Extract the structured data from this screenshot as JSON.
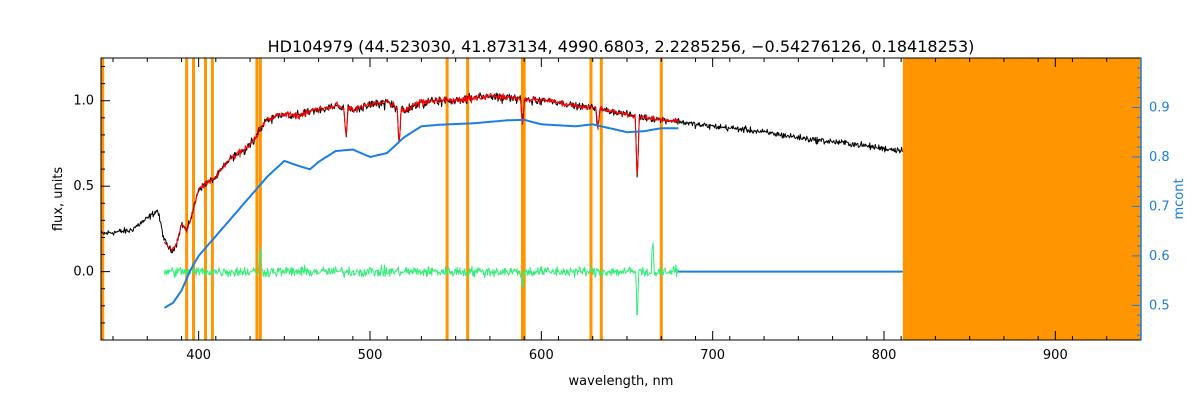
{
  "chart_data": {
    "type": "line",
    "title": "HD104979   (44.523030, 41.873134, 4990.6803, 2.2285256, −0.54276126, 0.18418253)",
    "xlabel": "wavelength, nm",
    "ylabel": "flux, units",
    "y2label": "mcont",
    "xlim": [
      343,
      950
    ],
    "ylim": [
      -0.4,
      1.25
    ],
    "y2lim": [
      0.43,
      1.0
    ],
    "x_ticks": [
      400,
      500,
      600,
      700,
      800,
      900
    ],
    "y_ticks": [
      0.0,
      0.5,
      1.0
    ],
    "y_tick_labels": [
      "0.0",
      "0.5",
      "1.0"
    ],
    "y2_ticks": [
      0.5,
      0.6,
      0.7,
      0.8,
      0.9
    ],
    "y2_tick_labels": [
      "0.5",
      "0.6",
      "0.7",
      "0.8",
      "0.9"
    ],
    "masked_lines_nm": [
      344,
      393,
      397,
      404,
      408,
      434,
      436,
      545,
      557,
      589,
      590,
      629,
      635,
      670
    ],
    "masked_region_nm": [
      811,
      950
    ],
    "series": [
      {
        "key": "observed",
        "color": "#000000",
        "axis": "left",
        "noise": 0.028,
        "x": [
          343,
          350,
          360,
          370,
          376,
          380,
          384,
          387,
          390,
          393,
          396,
          400,
          405,
          410,
          415,
          420,
          425,
          430,
          435,
          440,
          445,
          450,
          460,
          470,
          480,
          490,
          500,
          510,
          520,
          530,
          540,
          550,
          560,
          570,
          580,
          590,
          600,
          610,
          620,
          630,
          640,
          650,
          660,
          670,
          680,
          690,
          700,
          720,
          740,
          760,
          780,
          800,
          811
        ],
        "y": [
          0.22,
          0.23,
          0.24,
          0.31,
          0.36,
          0.18,
          0.12,
          0.16,
          0.28,
          0.24,
          0.33,
          0.48,
          0.52,
          0.55,
          0.62,
          0.68,
          0.72,
          0.75,
          0.83,
          0.9,
          0.92,
          0.93,
          0.93,
          0.96,
          0.98,
          0.96,
          0.99,
          1.0,
          0.95,
          1.0,
          1.01,
          1.01,
          1.03,
          1.04,
          1.03,
          1.02,
          1.01,
          0.99,
          0.97,
          0.96,
          0.94,
          0.92,
          0.9,
          0.89,
          0.88,
          0.86,
          0.85,
          0.83,
          0.8,
          0.77,
          0.75,
          0.72,
          0.71
        ]
      },
      {
        "key": "model",
        "color": "#ff0000",
        "axis": "left",
        "noise": 0.022,
        "x": [
          380,
          384,
          387,
          390,
          393,
          396,
          400,
          405,
          410,
          415,
          420,
          425,
          430,
          435,
          440,
          445,
          450,
          460,
          470,
          480,
          490,
          500,
          510,
          520,
          530,
          540,
          550,
          560,
          570,
          580,
          590,
          600,
          610,
          620,
          630,
          640,
          650,
          660,
          670,
          680
        ],
        "y": [
          0.18,
          0.12,
          0.16,
          0.28,
          0.24,
          0.33,
          0.48,
          0.52,
          0.55,
          0.62,
          0.68,
          0.72,
          0.75,
          0.83,
          0.9,
          0.92,
          0.93,
          0.93,
          0.96,
          0.98,
          0.96,
          0.99,
          1.0,
          0.95,
          1.0,
          1.01,
          1.01,
          1.03,
          1.04,
          1.03,
          1.02,
          1.01,
          0.99,
          0.97,
          0.96,
          0.94,
          0.92,
          0.9,
          0.89,
          0.88
        ]
      },
      {
        "key": "continuum",
        "color": "#1a7fe0",
        "axis": "right",
        "x": [
          380,
          385,
          390,
          395,
          400,
          410,
          420,
          430,
          440,
          450,
          460,
          465,
          470,
          480,
          490,
          500,
          510,
          520,
          530,
          540,
          560,
          580,
          590,
          600,
          620,
          630,
          640,
          650,
          660,
          670,
          680
        ],
        "y": [
          0.495,
          0.505,
          0.53,
          0.57,
          0.6,
          0.64,
          0.68,
          0.72,
          0.76,
          0.792,
          0.78,
          0.775,
          0.79,
          0.812,
          0.815,
          0.8,
          0.808,
          0.84,
          0.862,
          0.865,
          0.868,
          0.874,
          0.875,
          0.866,
          0.862,
          0.866,
          0.858,
          0.85,
          0.852,
          0.858,
          0.858
        ]
      },
      {
        "key": "continuum-baseline",
        "color": "#1a7fe0",
        "axis": "left",
        "x": [
          680,
          811
        ],
        "y": [
          0.0,
          0.0
        ]
      },
      {
        "key": "residuals",
        "color": "#33ee77",
        "axis": "left",
        "noise": 0.045,
        "x": [
          380,
          680
        ],
        "y": [
          0.0,
          0.0
        ]
      }
    ],
    "absorption_features": [
      {
        "x": 486,
        "depth": 0.18
      },
      {
        "x": 517,
        "depth": 0.22
      },
      {
        "x": 589,
        "depth": 0.14
      },
      {
        "x": 633,
        "depth": 0.12
      },
      {
        "x": 656,
        "depth": 0.38
      }
    ],
    "residual_spikes": [
      {
        "x": 436,
        "amp": 0.14
      },
      {
        "x": 589,
        "amp": -0.12
      },
      {
        "x": 656,
        "amp": -0.33
      },
      {
        "x": 665,
        "amp": 0.2
      }
    ]
  },
  "colors": {
    "mask": "#ff9500",
    "frame": "#000000",
    "right_axis": "#1a7fe0",
    "background": "#ffffff"
  }
}
